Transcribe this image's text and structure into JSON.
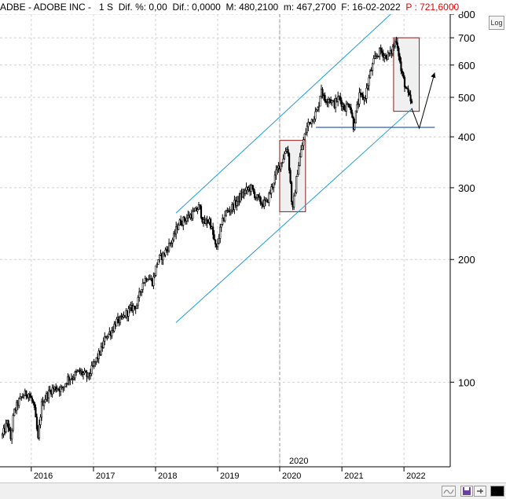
{
  "header": {
    "symbol": "ADBE - ADOBE INC -",
    "interval": "1 S",
    "dif_pct": "Dif. %: 0,00",
    "dif": "Dif.: 0,0000",
    "max": "M: 480,2100",
    "min": "m: 467,2700",
    "date": "F: 16-02-2022",
    "price": "P : 721,6000"
  },
  "toolbar": {
    "log_label": "Log",
    "icons": [
      "wave-icon",
      "save-icon",
      "pin-icon",
      "color-swatch-icon"
    ]
  },
  "chart_data": {
    "type": "candlestick",
    "title": "ADBE - ADOBE INC",
    "scale": "log",
    "ylim": [
      62,
      800
    ],
    "y_ticks": [
      100,
      200,
      300,
      400,
      500,
      600,
      700,
      800
    ],
    "y_tick_labels": [
      "100",
      "200",
      "300",
      "400",
      "500",
      "600",
      "700",
      "800"
    ],
    "x_ticks": [
      "2016",
      "2017",
      "2018",
      "2019",
      "2020",
      "2021",
      "2022"
    ],
    "x_highlight_label": "2020",
    "xlim": [
      "2015-07-01",
      "2022-09-30"
    ],
    "series": [
      {
        "values": [
          [
            "2015-07-15",
            74
          ],
          [
            "2015-08-15",
            80
          ],
          [
            "2015-09-01",
            72
          ],
          [
            "2015-09-20",
            84
          ],
          [
            "2015-10-15",
            89
          ],
          [
            "2015-11-15",
            93
          ],
          [
            "2015-12-15",
            94
          ],
          [
            "2016-01-15",
            88
          ],
          [
            "2016-02-10",
            72
          ],
          [
            "2016-03-01",
            88
          ],
          [
            "2016-04-01",
            93
          ],
          [
            "2016-05-01",
            96
          ],
          [
            "2016-06-01",
            97
          ],
          [
            "2016-07-01",
            96
          ],
          [
            "2016-08-01",
            102
          ],
          [
            "2016-09-01",
            103
          ],
          [
            "2016-10-01",
            106
          ],
          [
            "2016-11-01",
            105
          ],
          [
            "2016-12-01",
            103
          ],
          [
            "2017-01-15",
            113
          ],
          [
            "2017-02-15",
            120
          ],
          [
            "2017-03-15",
            130
          ],
          [
            "2017-04-15",
            133
          ],
          [
            "2017-05-15",
            141
          ],
          [
            "2017-06-15",
            142
          ],
          [
            "2017-07-15",
            148
          ],
          [
            "2017-08-15",
            152
          ],
          [
            "2017-09-15",
            155
          ],
          [
            "2017-10-15",
            175
          ],
          [
            "2017-11-15",
            182
          ],
          [
            "2017-12-15",
            176
          ],
          [
            "2018-01-15",
            200
          ],
          [
            "2018-02-15",
            205
          ],
          [
            "2018-03-15",
            215
          ],
          [
            "2018-04-15",
            225
          ],
          [
            "2018-05-15",
            245
          ],
          [
            "2018-06-15",
            250
          ],
          [
            "2018-07-15",
            255
          ],
          [
            "2018-08-15",
            260
          ],
          [
            "2018-09-15",
            270
          ],
          [
            "2018-10-10",
            245
          ],
          [
            "2018-11-15",
            250
          ],
          [
            "2018-12-24",
            210
          ],
          [
            "2019-01-15",
            235
          ],
          [
            "2019-02-15",
            260
          ],
          [
            "2019-03-15",
            265
          ],
          [
            "2019-04-15",
            275
          ],
          [
            "2019-05-15",
            285
          ],
          [
            "2019-06-15",
            295
          ],
          [
            "2019-07-15",
            300
          ],
          [
            "2019-08-15",
            285
          ],
          [
            "2019-09-15",
            275
          ],
          [
            "2019-10-15",
            275
          ],
          [
            "2019-11-15",
            300
          ],
          [
            "2019-12-15",
            330
          ],
          [
            "2020-01-15",
            350
          ],
          [
            "2020-02-15",
            380
          ],
          [
            "2020-03-16",
            260
          ],
          [
            "2020-04-15",
            330
          ],
          [
            "2020-05-15",
            385
          ],
          [
            "2020-06-15",
            430
          ],
          [
            "2020-07-15",
            445
          ],
          [
            "2020-08-15",
            470
          ],
          [
            "2020-09-01",
            530
          ],
          [
            "2020-09-20",
            490
          ],
          [
            "2020-10-15",
            500
          ],
          [
            "2020-11-15",
            480
          ],
          [
            "2020-12-15",
            500
          ],
          [
            "2021-01-15",
            470
          ],
          [
            "2021-02-15",
            485
          ],
          [
            "2021-03-10",
            425
          ],
          [
            "2021-04-15",
            505
          ],
          [
            "2021-05-15",
            495
          ],
          [
            "2021-06-15",
            570
          ],
          [
            "2021-07-15",
            625
          ],
          [
            "2021-08-15",
            650
          ],
          [
            "2021-09-15",
            630
          ],
          [
            "2021-10-15",
            640
          ],
          [
            "2021-11-18",
            695
          ],
          [
            "2021-12-15",
            580
          ],
          [
            "2022-01-15",
            520
          ],
          [
            "2022-02-16",
            480
          ]
        ]
      }
    ],
    "annotations": {
      "channel_upper": [
        [
          "2018-05-01",
          260
        ],
        [
          "2021-10-15",
          800
        ]
      ],
      "channel_lower": [
        [
          "2018-05-01",
          140
        ],
        [
          "2022-02-20",
          470
        ]
      ],
      "support_line": {
        "start": "2020-08-01",
        "end": "2022-07-01",
        "value": 422
      },
      "box_2020": {
        "x": [
          "2020-01-01",
          "2020-06-01"
        ],
        "y": [
          262,
          392
        ],
        "fill": "#f0f0f0",
        "border": "#8b1a1a"
      },
      "box_2022": {
        "x": [
          "2021-11-01",
          "2022-04-01"
        ],
        "y": [
          462,
          700
        ],
        "fill": "#f0f0f0",
        "border": "#8b1a1a"
      },
      "projection_arrow": [
        [
          "2022-02-15",
          470
        ],
        [
          "2022-04-01",
          420
        ],
        [
          "2022-07-01",
          575
        ]
      ]
    }
  }
}
